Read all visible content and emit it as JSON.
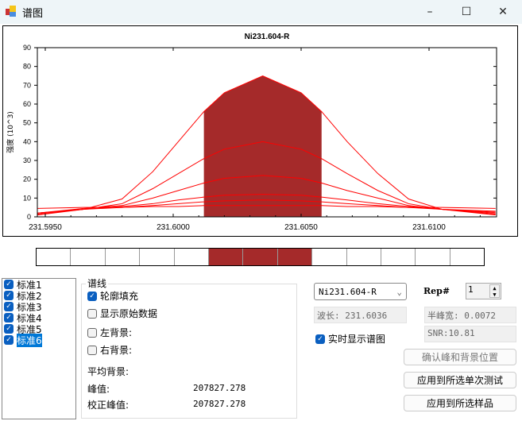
{
  "window": {
    "title": "谱图",
    "icon": "app-chart-icon",
    "minimize": "–",
    "maximize": "☐",
    "close": "✕"
  },
  "chart_data": {
    "type": "line",
    "title": "Ni231.604-R",
    "xlabel": "",
    "ylabel": "强度 (10^3)",
    "xlim": [
      231.59469,
      231.61264
    ],
    "ylim": [
      0,
      90
    ],
    "xticks": [
      "231.5950",
      "231.6000",
      "231.6050",
      "231.6100"
    ],
    "yticks": [
      "0",
      "10",
      "20",
      "30",
      "40",
      "50",
      "60",
      "70",
      "80",
      "90"
    ],
    "line_color": "#ff0000",
    "fill_color": "#a52a2a",
    "fill_range": [
      231.6012,
      231.6058
    ],
    "x": [
      231.5947,
      231.5965,
      231.598,
      231.5992,
      231.6002,
      231.6012,
      231.602,
      231.6035,
      231.605,
      231.6058,
      231.6068,
      231.608,
      231.6092,
      231.6105,
      231.6126
    ],
    "series": [
      {
        "values": [
          1,
          4,
          9.5,
          24,
          40,
          56,
          66,
          75,
          66,
          56,
          40,
          23,
          9.5,
          4,
          1
        ]
      },
      {
        "values": [
          1.5,
          4,
          7,
          15,
          23,
          31,
          36,
          40,
          36,
          31,
          23,
          14,
          7,
          4,
          1.5
        ]
      },
      {
        "values": [
          2,
          4.5,
          6,
          10,
          14,
          18,
          20.5,
          22,
          20.5,
          18,
          14,
          10,
          6,
          4,
          2
        ]
      },
      {
        "values": [
          2,
          4,
          5.5,
          7,
          9,
          10.5,
          11.5,
          12,
          11.5,
          10.5,
          9,
          7,
          5.5,
          4,
          2.5
        ]
      },
      {
        "values": [
          2,
          4,
          5,
          6,
          7,
          8,
          8.5,
          9,
          8.5,
          8,
          7,
          6,
          5,
          4,
          3
        ]
      },
      {
        "values": [
          4.5,
          5,
          5,
          5.5,
          5.5,
          6,
          6,
          6,
          6,
          6,
          5.5,
          5.5,
          5,
          5,
          4.5
        ]
      }
    ]
  },
  "strip": {
    "cells": 13,
    "selected": [
      6,
      7,
      8
    ]
  },
  "standards": [
    {
      "label": "标准1",
      "checked": true
    },
    {
      "label": "标准2",
      "checked": true
    },
    {
      "label": "标准3",
      "checked": true
    },
    {
      "label": "标准4",
      "checked": true
    },
    {
      "label": "标准5",
      "checked": true
    },
    {
      "label": "标准6",
      "checked": true,
      "selected": true
    }
  ],
  "group": {
    "label": "谱线",
    "fill": "轮廓填充",
    "raw": "显示原始数据",
    "left_bg": "左背景:",
    "right_bg": "右背景:",
    "avg_bg": "平均背景:",
    "peak_label": "峰值:",
    "peak_value": "207827.278",
    "corr_label": "校正峰值:",
    "corr_value": "207827.278"
  },
  "right": {
    "line_select": "Ni231.604-R",
    "rep_label": "Rep#",
    "rep_value": "1",
    "wavelength": "波长: 231.6036",
    "fwhm": "半峰宽: 0.0072",
    "snr": "SNR:10.81",
    "realtime": "实时显示谱图",
    "confirm": "确认峰和背景位置",
    "apply_single": "应用到所选单次测试",
    "apply_sample": "应用到所选样品"
  }
}
